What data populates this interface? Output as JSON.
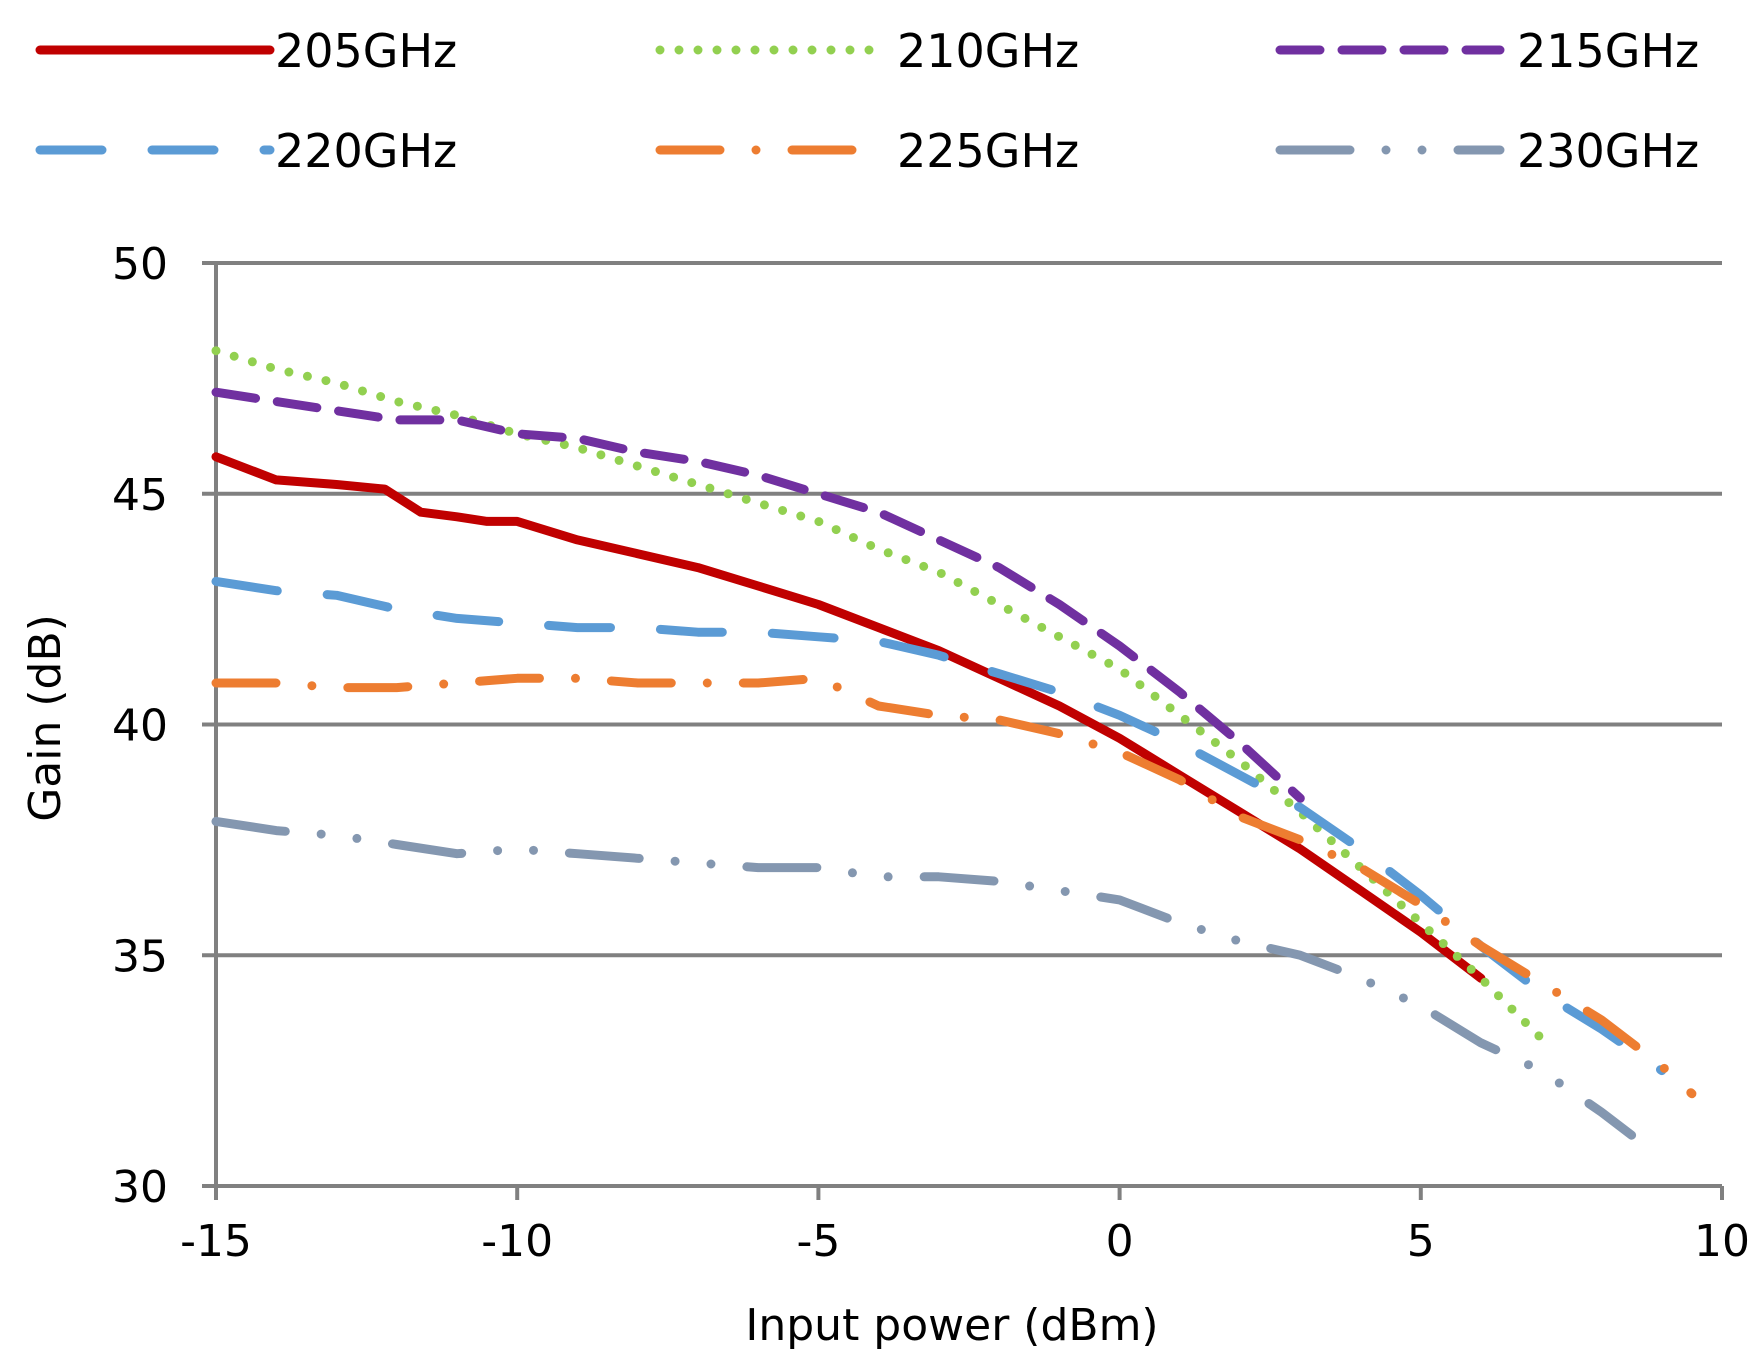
{
  "chart_data": {
    "type": "line",
    "title": "",
    "xlabel": "Input power  (dBm)",
    "ylabel": "Gain  (dB)",
    "xlim": [
      -15,
      10
    ],
    "ylim": [
      30,
      50
    ],
    "x_ticks": [
      -15,
      -10,
      -5,
      0,
      5,
      10
    ],
    "y_ticks": [
      30,
      35,
      40,
      45,
      50
    ],
    "x_tick_labels": [
      "-15",
      "-10",
      "-5",
      "0",
      "5",
      "10"
    ],
    "y_tick_labels": [
      "30",
      "35",
      "40",
      "45",
      "50"
    ],
    "grid": "horizontal",
    "legend_position": "top",
    "series": [
      {
        "name": "205GHz",
        "color": "#c00000",
        "style": "solid",
        "x": [
          -15,
          -14,
          -13,
          -12.2,
          -11.6,
          -11,
          -10.5,
          -10,
          -9,
          -8,
          -7,
          -6,
          -5,
          -4,
          -3,
          -2,
          -1,
          0,
          1,
          2,
          3,
          4,
          5,
          6
        ],
        "y": [
          45.8,
          45.3,
          45.2,
          45.1,
          44.6,
          44.5,
          44.4,
          44.4,
          44.0,
          43.7,
          43.4,
          43.0,
          42.6,
          42.1,
          41.6,
          41.0,
          40.4,
          39.7,
          38.9,
          38.1,
          37.3,
          36.4,
          35.5,
          34.5
        ]
      },
      {
        "name": "210GHz",
        "color": "#92d050",
        "style": "dotted",
        "x": [
          -15,
          -14,
          -13,
          -12,
          -11,
          -10,
          -9,
          -8,
          -7,
          -6,
          -5,
          -4,
          -3,
          -2,
          -1,
          0,
          1,
          2,
          3,
          4,
          5,
          6,
          7
        ],
        "y": [
          48.1,
          47.7,
          47.4,
          47.0,
          46.7,
          46.3,
          46.0,
          45.6,
          45.2,
          44.8,
          44.4,
          43.8,
          43.3,
          42.6,
          41.9,
          41.2,
          40.2,
          39.2,
          38.1,
          36.9,
          35.7,
          34.5,
          33.2
        ]
      },
      {
        "name": "215GHz",
        "color": "#7030a0",
        "style": "dashed",
        "x": [
          -15,
          -14,
          -13,
          -12,
          -11,
          -10,
          -9,
          -8,
          -7,
          -6,
          -5,
          -4,
          -3,
          -2,
          -1,
          0,
          1,
          2,
          3
        ],
        "y": [
          47.2,
          47.0,
          46.8,
          46.6,
          46.6,
          46.3,
          46.2,
          45.9,
          45.7,
          45.4,
          45.0,
          44.6,
          44.0,
          43.4,
          42.6,
          41.7,
          40.7,
          39.6,
          38.4
        ]
      },
      {
        "name": "220GHz",
        "color": "#5b9bd5",
        "style": "longdash",
        "x": [
          -15,
          -14,
          -13,
          -12,
          -11,
          -10,
          -9,
          -8,
          -7,
          -6,
          -5,
          -4,
          -3,
          -2,
          -1,
          0,
          1,
          2,
          3,
          4,
          5,
          6,
          7,
          8,
          9
        ],
        "y": [
          43.1,
          42.9,
          42.8,
          42.5,
          42.3,
          42.2,
          42.1,
          42.1,
          42.0,
          42.0,
          41.9,
          41.8,
          41.5,
          41.1,
          40.7,
          40.2,
          39.6,
          38.9,
          38.2,
          37.3,
          36.3,
          35.2,
          34.2,
          33.4,
          32.5
        ]
      },
      {
        "name": "225GHz",
        "color": "#ed7d31",
        "style": "dashdot",
        "x": [
          -15,
          -14,
          -13,
          -12,
          -11,
          -10,
          -9,
          -8,
          -7,
          -6,
          -5,
          -4,
          -3,
          -2,
          -1,
          0,
          1,
          2,
          3,
          4,
          5,
          6,
          7,
          8,
          9,
          9.5
        ],
        "y": [
          40.9,
          40.9,
          40.8,
          40.8,
          40.9,
          41.0,
          41.0,
          40.9,
          40.9,
          40.9,
          41.0,
          40.4,
          40.2,
          40.1,
          39.8,
          39.4,
          38.8,
          38.0,
          37.5,
          36.9,
          36.1,
          35.2,
          34.4,
          33.6,
          32.6,
          32.0
        ]
      },
      {
        "name": "230GHz",
        "color": "#8497b0",
        "style": "longdashdotdot",
        "x": [
          -15,
          -14,
          -13,
          -12,
          -11,
          -10,
          -9,
          -8,
          -7,
          -6,
          -5,
          -4,
          -3,
          -2,
          -1,
          0,
          1,
          2,
          3,
          4,
          5,
          6,
          7,
          8,
          8.5
        ],
        "y": [
          37.9,
          37.7,
          37.6,
          37.4,
          37.2,
          37.3,
          37.2,
          37.1,
          37.0,
          36.9,
          36.9,
          36.7,
          36.7,
          36.6,
          36.4,
          36.2,
          35.7,
          35.3,
          35.0,
          34.5,
          33.9,
          33.1,
          32.5,
          31.6,
          31.1
        ]
      }
    ]
  }
}
